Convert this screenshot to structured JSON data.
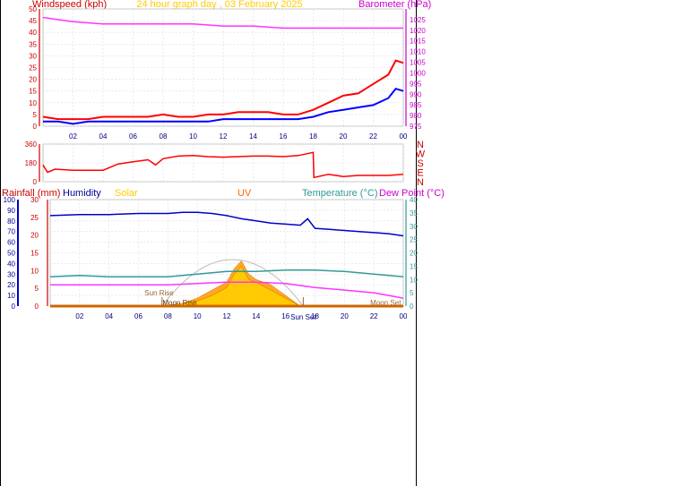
{
  "chart_data": [
    {
      "type": "line",
      "title": "24 hour graph day , 03 February 2025",
      "left_axis_title": "Windspeed (kph)",
      "right_axis_title": "Barometer (hPa)",
      "x_tick_labels": [
        "02",
        "04",
        "06",
        "08",
        "10",
        "12",
        "14",
        "16",
        "18",
        "20",
        "22",
        "00"
      ],
      "left_ticks": [
        "0",
        "5",
        "10",
        "15",
        "20",
        "25",
        "30",
        "35",
        "40",
        "45",
        "50"
      ],
      "right_ticks": [
        "975",
        "980",
        "985",
        "990",
        "995",
        "1000",
        "1005",
        "1010",
        "1015",
        "1020",
        "1025"
      ],
      "xlim": [
        0,
        24
      ],
      "ylim_left": [
        0,
        50
      ],
      "ylim_right": [
        975,
        1030
      ],
      "grid": true,
      "series": [
        {
          "axis": "right",
          "color": "#ff33ff",
          "x": [
            0,
            1,
            2,
            4,
            6,
            8,
            10,
            12,
            14,
            16,
            18,
            20,
            22,
            24
          ],
          "values": [
            1026,
            1025,
            1024,
            1023,
            1023,
            1023,
            1023,
            1022,
            1022,
            1021,
            1021,
            1021,
            1021,
            1021
          ]
        },
        {
          "axis": "left",
          "color": "#ff0000",
          "x": [
            0,
            1,
            2,
            3,
            4,
            5,
            6,
            7,
            8,
            9,
            10,
            11,
            12,
            13,
            14,
            15,
            16,
            17,
            18,
            19,
            20,
            21,
            22,
            23,
            23.5,
            24
          ],
          "values": [
            4,
            3,
            3,
            3,
            4,
            4,
            4,
            4,
            5,
            4,
            4,
            5,
            5,
            6,
            6,
            6,
            5,
            5,
            7,
            10,
            13,
            14,
            18,
            22,
            28,
            27
          ]
        },
        {
          "axis": "left",
          "color": "#0000ff",
          "x": [
            0,
            1,
            2,
            3,
            4,
            5,
            6,
            7,
            8,
            9,
            10,
            11,
            12,
            13,
            14,
            15,
            16,
            17,
            18,
            19,
            20,
            21,
            22,
            23,
            23.5,
            24
          ],
          "values": [
            2,
            2,
            1,
            2,
            2,
            2,
            2,
            2,
            2,
            2,
            2,
            2,
            3,
            3,
            3,
            3,
            3,
            3,
            4,
            6,
            7,
            8,
            9,
            12,
            16,
            15
          ]
        }
      ]
    },
    {
      "type": "line",
      "title": "",
      "left_ticks": [
        "0",
        "180",
        "360"
      ],
      "right_compass": [
        "N",
        "W",
        "S",
        "E",
        "N"
      ],
      "xlim": [
        0,
        24
      ],
      "ylim": [
        0,
        360
      ],
      "grid": true,
      "series": [
        {
          "color": "#ff0000",
          "x": [
            0,
            0.3,
            0.8,
            2,
            3,
            4,
            5,
            6,
            7,
            7.5,
            8,
            9,
            10,
            11,
            12,
            13,
            14,
            15,
            16,
            17,
            18,
            18.05,
            19,
            20,
            21,
            22,
            23,
            24
          ],
          "values": [
            160,
            90,
            120,
            110,
            110,
            110,
            170,
            190,
            210,
            160,
            220,
            245,
            250,
            240,
            235,
            240,
            245,
            245,
            240,
            250,
            280,
            40,
            70,
            50,
            60,
            60,
            60,
            70
          ]
        }
      ]
    },
    {
      "type": "line",
      "title": "",
      "legend": [
        "Rainfall (mm)",
        "Humidity",
        "Solar",
        "UV",
        "Temperature (°C)",
        "Dew Point (°C)"
      ],
      "x_tick_labels": [
        "02",
        "04",
        "06",
        "08",
        "10",
        "12",
        "14",
        "16",
        "18",
        "20",
        "22",
        "00"
      ],
      "humidity_ticks": [
        "0",
        "10",
        "20",
        "30",
        "40",
        "50",
        "60",
        "70",
        "80",
        "90",
        "100"
      ],
      "rain_ticks": [
        "0",
        "5",
        "10",
        "15",
        "20",
        "25",
        "30"
      ],
      "temp_ticks": [
        "0",
        "5",
        "10",
        "15",
        "20",
        "25",
        "30",
        "35",
        "40"
      ],
      "annotations": [
        "Sun Rise",
        "Moon Rise",
        "Sun Set",
        "Moon Set"
      ],
      "xlim": [
        0,
        24
      ],
      "ylim_humidity": [
        0,
        100
      ],
      "ylim_temperature": [
        0,
        40
      ],
      "grid": true,
      "series": [
        {
          "name": "Humidity",
          "axis": "humidity",
          "color": "#0000cc",
          "x": [
            0,
            2,
            4,
            6,
            8,
            9,
            10,
            11,
            12,
            13,
            14,
            15,
            16,
            17,
            17.5,
            18,
            19,
            20,
            21,
            22,
            23,
            24
          ],
          "values": [
            85,
            86,
            86,
            87,
            87,
            88,
            88,
            87,
            85,
            82,
            80,
            78,
            77,
            76,
            82,
            73,
            72,
            71,
            70,
            69,
            68,
            66
          ]
        },
        {
          "name": "Temperature (°C)",
          "axis": "temperature",
          "color": "#339999",
          "x": [
            0,
            2,
            4,
            6,
            8,
            10,
            12,
            14,
            16,
            18,
            20,
            22,
            24
          ],
          "values": [
            11,
            11.5,
            11,
            11,
            11,
            12,
            13,
            13,
            13.5,
            13.5,
            13,
            12,
            11
          ]
        },
        {
          "name": "Dew Point (°C)",
          "axis": "temperature",
          "color": "#ff33ff",
          "x": [
            0,
            2,
            4,
            6,
            8,
            10,
            12,
            14,
            16,
            18,
            20,
            22,
            24
          ],
          "values": [
            8,
            8,
            8,
            8,
            8,
            8.5,
            9,
            9,
            8.5,
            7,
            6,
            5,
            3
          ]
        },
        {
          "name": "UV",
          "axis": "temperature",
          "color": "#ff9900",
          "x": [
            7.5,
            9,
            10,
            11,
            12,
            12.5,
            13,
            13.5,
            14,
            15,
            16,
            17
          ],
          "values": [
            0,
            1,
            3,
            6,
            9,
            14,
            17,
            12,
            10,
            8,
            4,
            0
          ]
        },
        {
          "name": "Solar",
          "axis": "temperature",
          "color": "#ffcc00",
          "x": [
            7.5,
            9,
            10,
            11,
            12,
            12.5,
            13,
            13.5,
            14,
            15,
            16,
            17
          ],
          "values": [
            0,
            1,
            2,
            4,
            7,
            12,
            15,
            10,
            9,
            6,
            3,
            0
          ]
        }
      ]
    }
  ]
}
